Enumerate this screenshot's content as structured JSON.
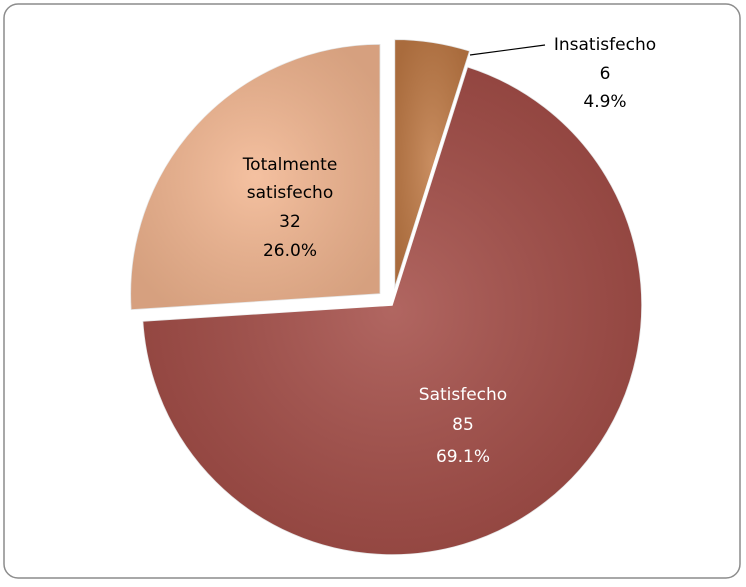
{
  "chart_data": {
    "type": "pie",
    "categories": [
      "Insatisfecho",
      "Satisfecho",
      "Totalmente satisfecho"
    ],
    "values": [
      6,
      85,
      32
    ],
    "percentages": [
      "4.9%",
      "69.1%",
      "26.0%"
    ],
    "colors": [
      "#c07a45",
      "#a34b45",
      "#f3b690"
    ],
    "exploded": [
      true,
      false,
      true
    ]
  }
}
